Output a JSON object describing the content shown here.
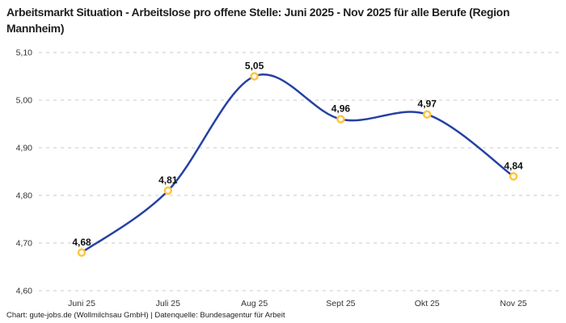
{
  "header": {
    "title": "Arbeitsmarkt Situation - Arbeitslose pro offene Stelle: Juni 2025 - Nov 2025 für alle Berufe (Region Mannheim)"
  },
  "footer": {
    "text": "Chart: gute-jobs.de (Wollmilchsau GmbH) | Datenquelle: Bundesagentur für Arbeit"
  },
  "chart_data": {
    "type": "line",
    "title": "Arbeitsmarkt Situation - Arbeitslose pro offene Stelle: Juni 2025 - Nov 2025 für alle Berufe (Region Mannheim)",
    "categories": [
      "Juni 25",
      "Juli 25",
      "Aug 25",
      "Sept 25",
      "Okt 25",
      "Nov 25"
    ],
    "values": [
      4.68,
      4.81,
      5.05,
      4.96,
      4.97,
      4.84
    ],
    "point_labels": [
      "4,68",
      "4,81",
      "5,05",
      "4,96",
      "4,97",
      "4,84"
    ],
    "xlabel": "",
    "ylabel": "",
    "ylim": [
      4.6,
      5.1
    ],
    "yticks": [
      4.6,
      4.7,
      4.8,
      4.9,
      5.0,
      5.1
    ],
    "ytick_labels": [
      "4,60",
      "4,70",
      "4,80",
      "4,90",
      "5,00",
      "5,10"
    ],
    "grid": "horizontal-dashed",
    "legend": "none",
    "smoothing": "spline",
    "colors": {
      "line": "#2540A4",
      "marker_ring": "#FFC53D",
      "marker_fill": "#FFFFFF",
      "grid": "#C9C9C9",
      "axis_text": "#333333",
      "label_text": "#111111"
    },
    "source": "Chart: gute-jobs.de (Wollmilchsau GmbH) | Datenquelle: Bundesagentur für Arbeit"
  }
}
